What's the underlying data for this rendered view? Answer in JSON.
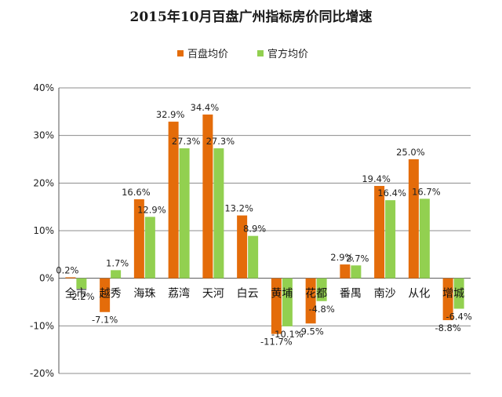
{
  "chart_data": {
    "type": "bar",
    "title": "2015年10月百盘广州指标房价同比增速",
    "categories": [
      "全市",
      "越秀",
      "海珠",
      "荔湾",
      "天河",
      "白云",
      "黄埔",
      "花都",
      "番禺",
      "南沙",
      "从化",
      "增城"
    ],
    "series": [
      {
        "name": "百盘均价",
        "color": "#E46C0A",
        "values": [
          0.2,
          -7.1,
          16.6,
          32.9,
          34.4,
          13.2,
          -11.7,
          -9.5,
          2.9,
          19.4,
          25.0,
          -8.8
        ],
        "labels": [
          "0.2%",
          "-7.1%",
          "16.6%",
          "32.9%",
          "34.4%",
          "13.2%",
          "-11.7%",
          "-9.5%",
          "2.9%",
          "19.4%",
          "25.0%",
          "-8.8%"
        ]
      },
      {
        "name": "官方均价",
        "color": "#92D050",
        "values": [
          -2.2,
          1.7,
          12.9,
          27.3,
          27.3,
          8.9,
          -10.1,
          -4.8,
          2.7,
          16.4,
          16.7,
          -6.4
        ],
        "labels": [
          "-2.2%",
          "1.7%",
          "12.9%",
          "27.3%",
          "27.3%",
          "8.9%",
          "-10.1%",
          "-4.8%",
          "2.7%",
          "16.4%",
          "16.7%",
          "-6.4%"
        ]
      }
    ],
    "ylim": [
      -20,
      40
    ],
    "yticks": [
      -20,
      -10,
      0,
      10,
      20,
      30,
      40
    ],
    "ytick_labels": [
      "-20%",
      "-10%",
      "0%",
      "10%",
      "20%",
      "30%",
      "40%"
    ],
    "xlabel": "",
    "ylabel": "",
    "grid": true,
    "legend_position": "top-center"
  }
}
